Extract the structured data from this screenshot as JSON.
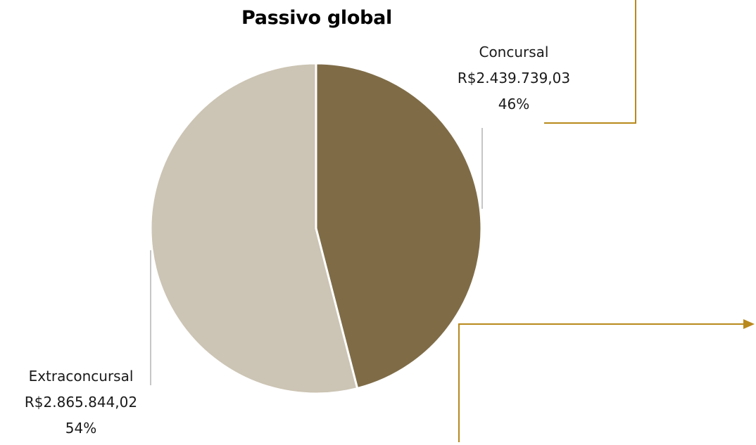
{
  "chart_data": {
    "type": "pie",
    "title": "Passivo global",
    "slices": [
      {
        "label": "Concursal",
        "value": 2439739.03,
        "value_label": "R$2.439.739,03",
        "percent_label": "46%",
        "color": "#7f6c47"
      },
      {
        "label": "Extraconcursal",
        "value": 2865844.02,
        "value_label": "R$2.865.844,02",
        "percent_label": "54%",
        "color": "#ccc4b4"
      }
    ]
  },
  "colors": {
    "accent_line": "#b8891c",
    "leader_line": "#b3b3b3",
    "background": "#ffffff"
  }
}
